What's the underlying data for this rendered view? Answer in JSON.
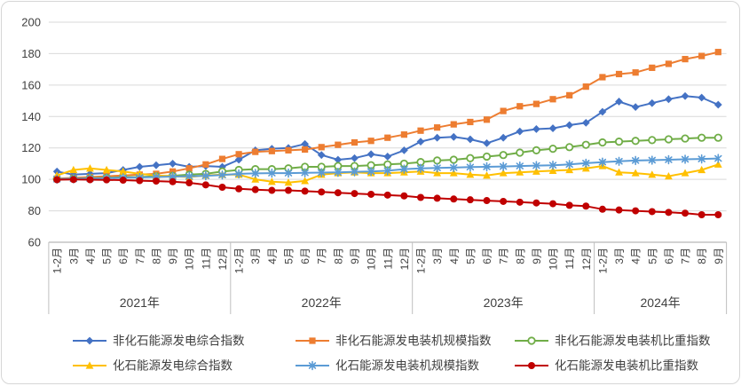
{
  "chart_data": {
    "type": "line",
    "title": "",
    "grid": true,
    "legend_position": "bottom",
    "ylim": [
      60,
      200
    ],
    "ytick_interval": 20,
    "ytick_labels": [
      "60",
      "80",
      "100",
      "120",
      "140",
      "160",
      "180",
      "200"
    ],
    "x_labels": [
      "1-2月",
      "3月",
      "4月",
      "5月",
      "6月",
      "7月",
      "8月",
      "9月",
      "10月",
      "11月",
      "12月",
      "1-2月",
      "3月",
      "4月",
      "5月",
      "6月",
      "7月",
      "8月",
      "9月",
      "10月",
      "11月",
      "12月",
      "1-2月",
      "3月",
      "4月",
      "5月",
      "6月",
      "7月",
      "8月",
      "9月",
      "10月",
      "11月",
      "12月",
      "1-2月",
      "3月",
      "4月",
      "5月",
      "6月",
      "7月",
      "8月",
      "9月"
    ],
    "year_groups": [
      {
        "label": "2021年",
        "count": 11
      },
      {
        "label": "2022年",
        "count": 11
      },
      {
        "label": "2023年",
        "count": 11
      },
      {
        "label": "2024年",
        "count": 8
      }
    ],
    "axis_text_color": "#404040",
    "gridline_color": "#d9d9d9",
    "axis_line_color": "#a6a6a6",
    "separator_color": "#bfbfbf",
    "series": [
      {
        "id": "non-fossil-generation-composite-index",
        "name": "非化石能源发电综合指数",
        "color": "#4472C4",
        "marker": "diamond",
        "values": [
          105,
          103,
          103.5,
          104,
          106,
          108,
          109,
          110,
          108,
          108.5,
          108,
          112.5,
          118.5,
          119.5,
          120,
          122.5,
          115.5,
          112.5,
          113.5,
          116,
          114.5,
          118.5,
          124,
          126.5,
          127,
          125.5,
          123,
          126.5,
          130.5,
          132,
          132.5,
          134.5,
          136,
          143,
          149.5,
          146,
          148.5,
          151,
          153,
          152,
          147.5
        ]
      },
      {
        "id": "non-fossil-installed-capacity-scale-index",
        "name": "非化石能源发电装机规模指数",
        "color": "#ED7D31",
        "marker": "square",
        "values": [
          100.5,
          101,
          101.5,
          102,
          102.5,
          103,
          103.5,
          105,
          107,
          109.5,
          113,
          116,
          117.5,
          118,
          118.5,
          119,
          120.5,
          122,
          123.5,
          124.5,
          126.5,
          128.5,
          131,
          133,
          135,
          136.5,
          138,
          143.5,
          146.5,
          148,
          151,
          153.5,
          159,
          165,
          167,
          168,
          171,
          173.5,
          176.5,
          178.5,
          181
        ]
      },
      {
        "id": "non-fossil-installed-capacity-share-index",
        "name": "非化石能源发电装机比重指数",
        "color": "#70AD47",
        "marker": "circle-open",
        "values": [
          100.3,
          100.5,
          100.8,
          101,
          101.3,
          101.5,
          102,
          102.3,
          103,
          103.5,
          105,
          106,
          106.5,
          106.5,
          107,
          108,
          108,
          108.5,
          108.5,
          109,
          109.5,
          110,
          111,
          112,
          112.5,
          113.5,
          114.5,
          115.5,
          117,
          118.5,
          119.5,
          120.5,
          122,
          123.5,
          124,
          124.5,
          125,
          125.5,
          126,
          126.5,
          126.5
        ]
      },
      {
        "id": "fossil-generation-composite-index",
        "name": "化石能源发电综合指数",
        "color": "#FFC000",
        "marker": "triangle",
        "values": [
          102.5,
          106,
          107,
          106,
          105,
          103.5,
          102.5,
          102,
          101.5,
          102.5,
          103,
          103,
          100,
          98.5,
          98,
          99,
          103,
          104,
          104.5,
          104,
          104,
          104.5,
          105,
          104,
          104,
          103,
          102.5,
          104,
          104.5,
          105,
          105.5,
          106,
          107,
          108.5,
          104.5,
          104,
          103,
          102,
          104,
          106,
          109.5
        ]
      },
      {
        "id": "fossil-installed-capacity-scale-index",
        "name": "化石能源发电装机规模指数",
        "color": "#5B9BD5",
        "marker": "asterisk",
        "values": [
          100.2,
          100.4,
          100.6,
          100.8,
          101,
          101.2,
          101.5,
          101.8,
          102,
          102.3,
          102.8,
          103.5,
          103.8,
          104,
          104,
          104.2,
          104.3,
          104.5,
          104.8,
          105,
          105.5,
          106.5,
          107,
          107.3,
          107.5,
          107.8,
          108,
          108.2,
          108.5,
          108.8,
          109,
          109.5,
          110.3,
          111,
          111.5,
          112,
          112.2,
          112.5,
          112.8,
          113,
          113.3
        ]
      },
      {
        "id": "fossil-installed-capacity-share-index",
        "name": "化石能源发电装机比重指数",
        "color": "#C00000",
        "marker": "circle-filled",
        "values": [
          99.8,
          99.9,
          99.8,
          99.7,
          99.5,
          99.2,
          98.9,
          98.5,
          97.8,
          96.5,
          95,
          94,
          93.5,
          93,
          93,
          92.5,
          92,
          91.5,
          91,
          90.5,
          90,
          89.5,
          88.5,
          88,
          87.5,
          87,
          86.5,
          86,
          85.5,
          85,
          84.5,
          83.5,
          83,
          81,
          80.5,
          80,
          79.5,
          79,
          78.5,
          77.5,
          77.5
        ]
      }
    ]
  }
}
